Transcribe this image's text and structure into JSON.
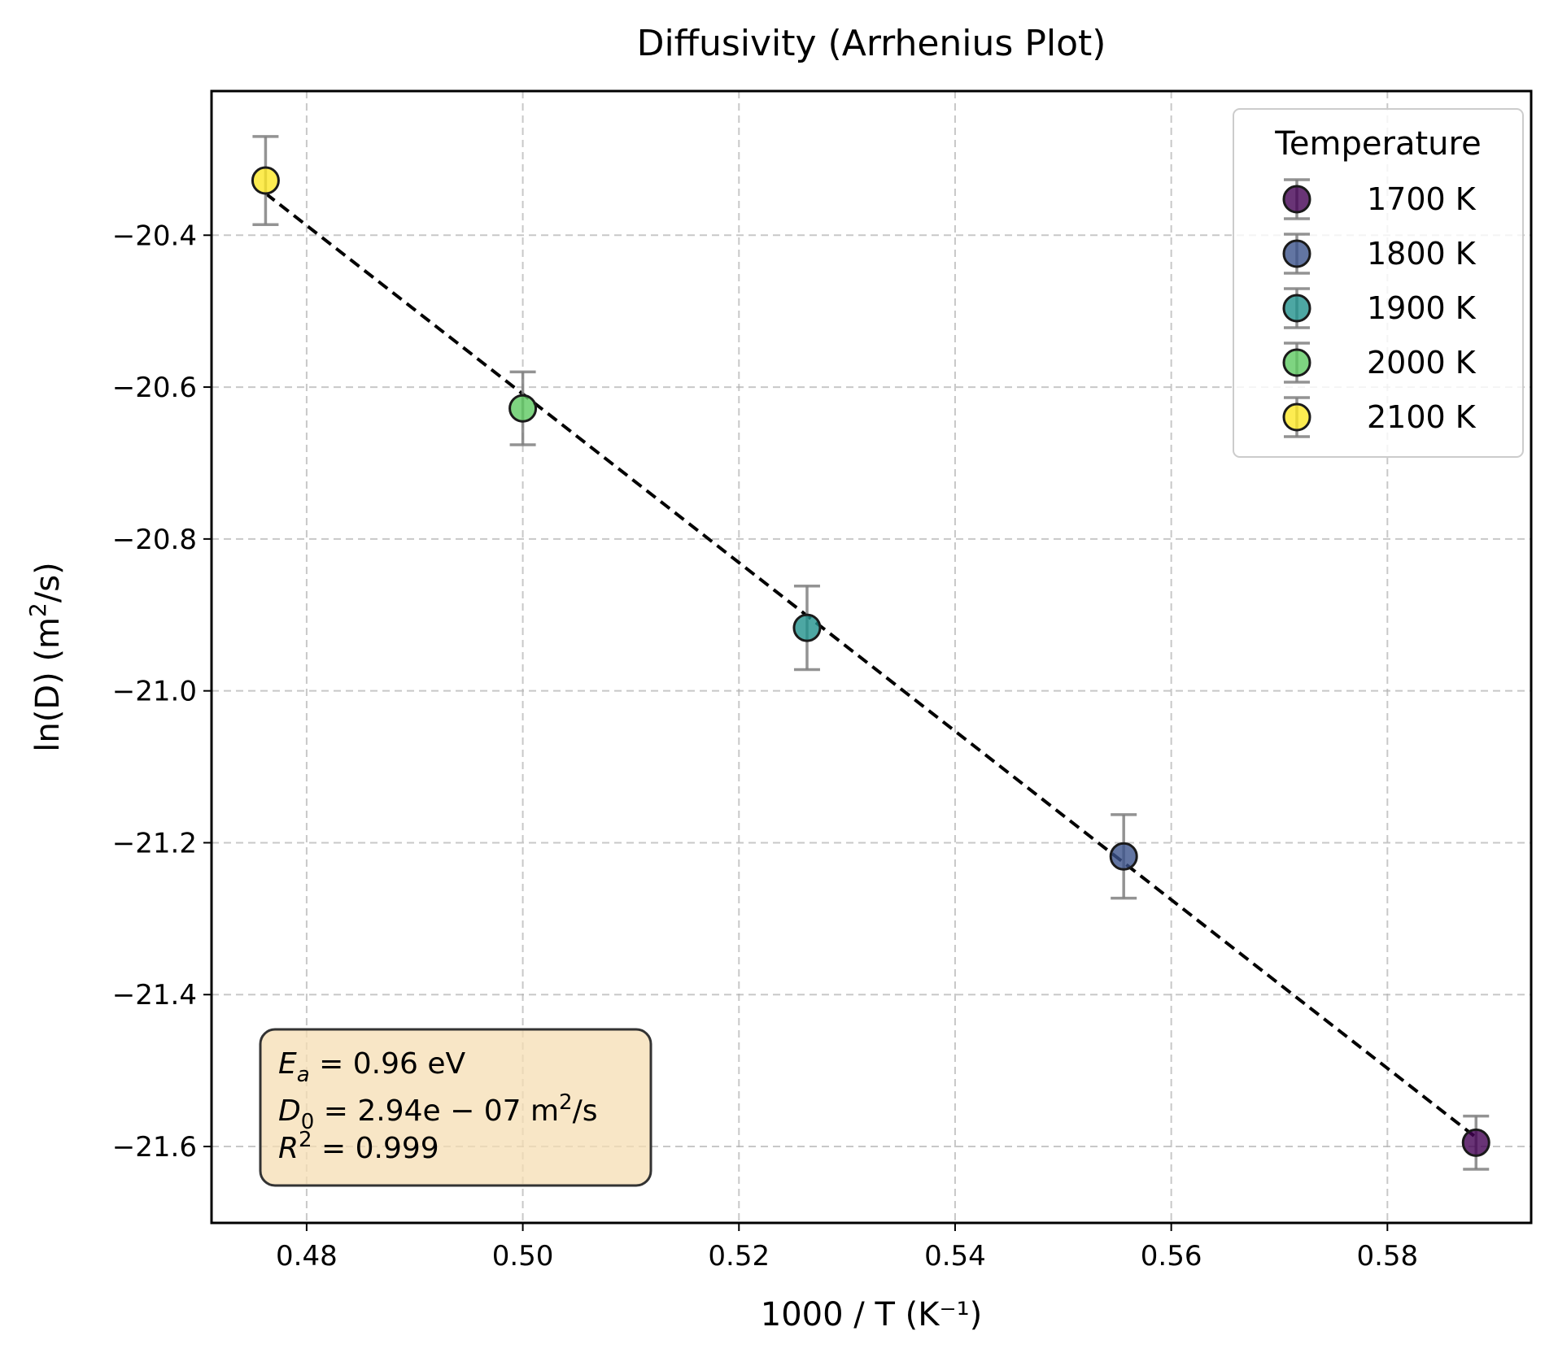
{
  "chart_data": {
    "type": "scatter",
    "title": "Diffusivity (Arrhenius Plot)",
    "xlabel": "1000 / T (K⁻¹)",
    "ylabel_parts": {
      "main": "ln(D) (m",
      "sup": "2",
      "end": "/s)"
    },
    "xlim": [
      0.4712,
      0.5933
    ],
    "ylim": [
      -21.7006,
      -20.2102
    ],
    "x_ticks": [
      0.48,
      0.5,
      0.52,
      0.54,
      0.56,
      0.58
    ],
    "x_tick_labels": [
      "0.48",
      "0.50",
      "0.52",
      "0.54",
      "0.56",
      "0.58"
    ],
    "y_ticks": [
      -20.4,
      -20.6,
      -20.8,
      -21.0,
      -21.2,
      -21.4,
      -21.6
    ],
    "y_tick_labels": [
      "−20.4",
      "−20.6",
      "−20.8",
      "−21.0",
      "−21.2",
      "−21.4",
      "−21.6"
    ],
    "grid": true,
    "legend_title": "Temperature",
    "legend_position": "upper right",
    "series": [
      {
        "name": "1700 K",
        "x": 0.5882,
        "y": -21.595,
        "yerr": 0.035,
        "color": "#440154"
      },
      {
        "name": "1800 K",
        "x": 0.5556,
        "y": -21.218,
        "yerr": 0.055,
        "color": "#3b528b"
      },
      {
        "name": "1900 K",
        "x": 0.5263,
        "y": -20.917,
        "yerr": 0.055,
        "color": "#21918c"
      },
      {
        "name": "2000 K",
        "x": 0.5,
        "y": -20.628,
        "yerr": 0.048,
        "color": "#5ec962"
      },
      {
        "name": "2100 K",
        "x": 0.4762,
        "y": -20.328,
        "yerr": 0.058,
        "color": "#fde725"
      }
    ],
    "fit_line": {
      "x": [
        0.4762,
        0.5882
      ],
      "y": [
        -20.345,
        -21.588
      ],
      "style": "dashed",
      "color": "#000000"
    },
    "annotation": {
      "line1": {
        "var": "E",
        "sub": "a",
        "rest": " = 0.96 eV"
      },
      "line2": {
        "var": "D",
        "sub": "0",
        "rest": " = 2.94e − 07 m",
        "sup": "2",
        "tail": "/s"
      },
      "line3": {
        "var": "R",
        "sup": "2",
        "rest": " = 0.999"
      },
      "box_color": "#f5deb3"
    }
  }
}
